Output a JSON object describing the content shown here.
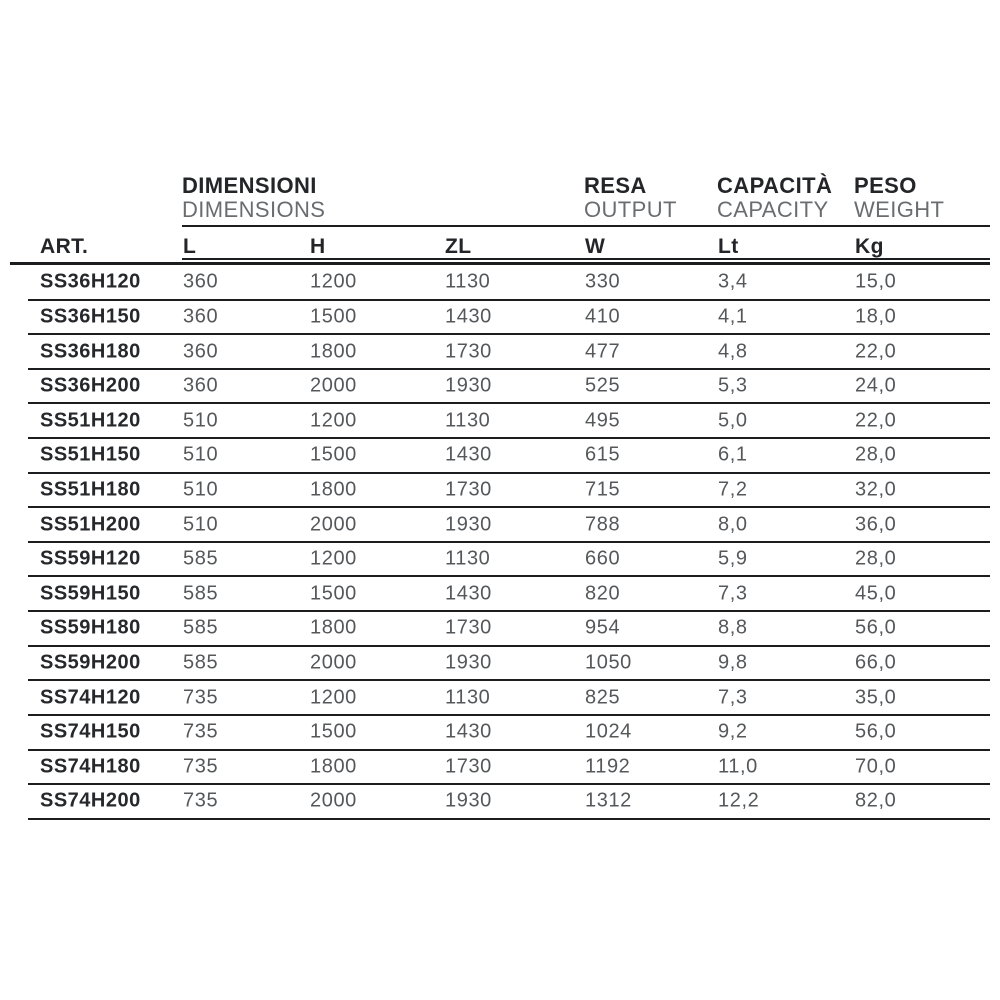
{
  "table": {
    "column_groups": [
      {
        "it": "DIMENSIONI",
        "en": "DIMENSIONS"
      },
      {
        "it": "RESA",
        "en": "OUTPUT"
      },
      {
        "it": "CAPACITÀ",
        "en": "CAPACITY"
      },
      {
        "it": "PESO",
        "en": "WEIGHT"
      }
    ],
    "art_header": "ART.",
    "unit_headers": {
      "l": "L",
      "h": "H",
      "zl": "ZL",
      "w": "W",
      "lt": "Lt",
      "kg": "Kg"
    },
    "rows": [
      {
        "art": "SS36H120",
        "l": "360",
        "h": "1200",
        "zl": "1130",
        "w": "330",
        "lt": "3,4",
        "kg": "15,0"
      },
      {
        "art": "SS36H150",
        "l": "360",
        "h": "1500",
        "zl": "1430",
        "w": "410",
        "lt": "4,1",
        "kg": "18,0"
      },
      {
        "art": "SS36H180",
        "l": "360",
        "h": "1800",
        "zl": "1730",
        "w": "477",
        "lt": "4,8",
        "kg": "22,0"
      },
      {
        "art": "SS36H200",
        "l": "360",
        "h": "2000",
        "zl": "1930",
        "w": "525",
        "lt": "5,3",
        "kg": "24,0"
      },
      {
        "art": "SS51H120",
        "l": "510",
        "h": "1200",
        "zl": "1130",
        "w": "495",
        "lt": "5,0",
        "kg": "22,0"
      },
      {
        "art": "SS51H150",
        "l": "510",
        "h": "1500",
        "zl": "1430",
        "w": "615",
        "lt": "6,1",
        "kg": "28,0"
      },
      {
        "art": "SS51H180",
        "l": "510",
        "h": "1800",
        "zl": "1730",
        "w": "715",
        "lt": "7,2",
        "kg": "32,0"
      },
      {
        "art": "SS51H200",
        "l": "510",
        "h": "2000",
        "zl": "1930",
        "w": "788",
        "lt": "8,0",
        "kg": "36,0"
      },
      {
        "art": "SS59H120",
        "l": "585",
        "h": "1200",
        "zl": "1130",
        "w": "660",
        "lt": "5,9",
        "kg": "28,0"
      },
      {
        "art": "SS59H150",
        "l": "585",
        "h": "1500",
        "zl": "1430",
        "w": "820",
        "lt": "7,3",
        "kg": "45,0"
      },
      {
        "art": "SS59H180",
        "l": "585",
        "h": "1800",
        "zl": "1730",
        "w": "954",
        "lt": "8,8",
        "kg": "56,0"
      },
      {
        "art": "SS59H200",
        "l": "585",
        "h": "2000",
        "zl": "1930",
        "w": "1050",
        "lt": "9,8",
        "kg": "66,0"
      },
      {
        "art": "SS74H120",
        "l": "735",
        "h": "1200",
        "zl": "1130",
        "w": "825",
        "lt": "7,3",
        "kg": "35,0"
      },
      {
        "art": "SS74H150",
        "l": "735",
        "h": "1500",
        "zl": "1430",
        "w": "1024",
        "lt": "9,2",
        "kg": "56,0"
      },
      {
        "art": "SS74H180",
        "l": "735",
        "h": "1800",
        "zl": "1730",
        "w": "1192",
        "lt": "11,0",
        "kg": "70,0"
      },
      {
        "art": "SS74H200",
        "l": "735",
        "h": "2000",
        "zl": "1930",
        "w": "1312",
        "lt": "12,2",
        "kg": "82,0"
      }
    ],
    "colors": {
      "text_dark": "#232528",
      "text_gray": "#55585b",
      "header_en_gray": "#6a6d70",
      "rule_line": "#1b1d1f",
      "background": "#ffffff"
    }
  }
}
